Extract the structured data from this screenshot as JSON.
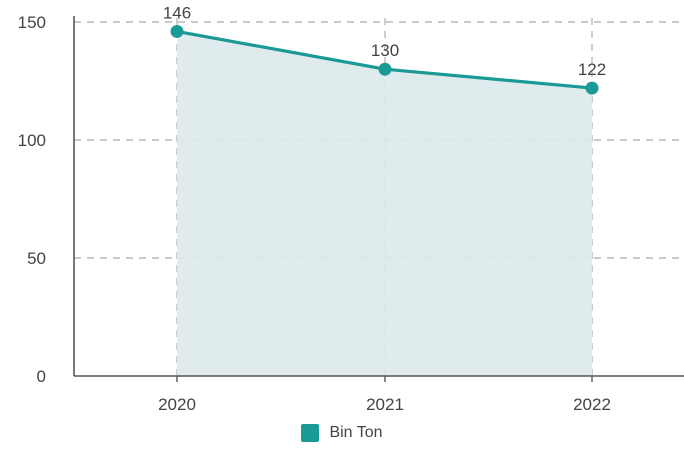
{
  "chart_data": {
    "type": "area",
    "categories": [
      "2020",
      "2021",
      "2022"
    ],
    "series": [
      {
        "name": "Bin Ton",
        "values": [
          146,
          130,
          122
        ]
      }
    ],
    "data_labels": [
      "146",
      "130",
      "122"
    ],
    "yticks": [
      "0",
      "50",
      "100",
      "150"
    ],
    "ylim": [
      0,
      150
    ],
    "grid": true,
    "legend": "bottom-center",
    "line_color": "#1a9a96",
    "fill_color": "#dce9ea"
  }
}
